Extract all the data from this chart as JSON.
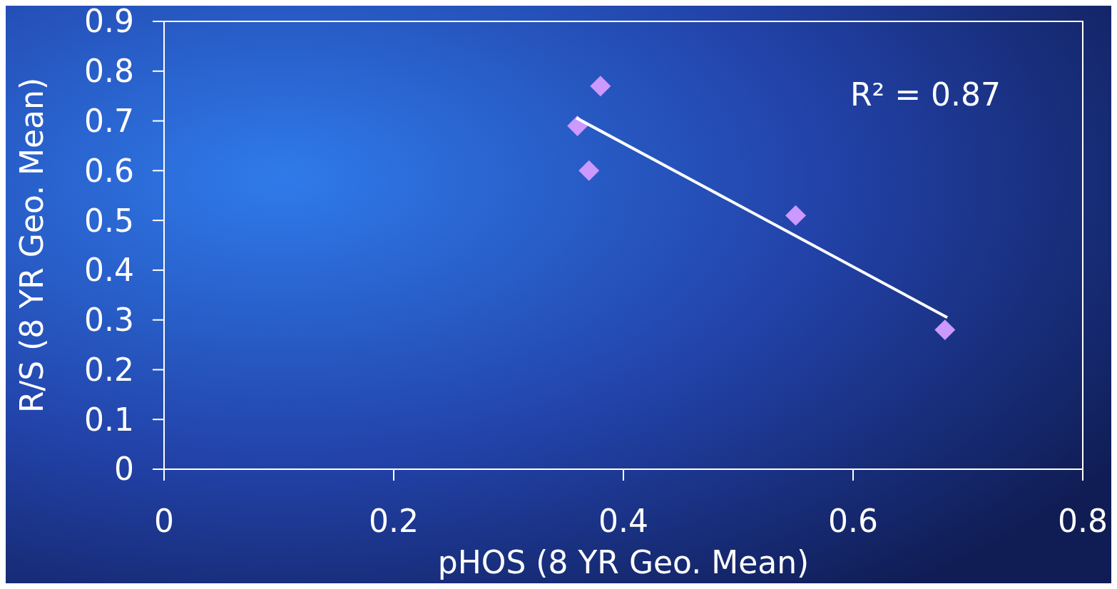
{
  "chart_data": {
    "type": "scatter",
    "xlabel": "pHOS (8 YR Geo. Mean)",
    "ylabel": "R/S (8 YR Geo. Mean)",
    "annotations": [
      "R² = 0.87"
    ],
    "xlim": [
      0,
      0.8
    ],
    "xticks": [
      0,
      0.2,
      0.4,
      0.6,
      0.8
    ],
    "ylim": [
      0,
      0.9
    ],
    "yticks": [
      0,
      0.1,
      0.2,
      0.3,
      0.4,
      0.5,
      0.6,
      0.7,
      0.8,
      0.9
    ],
    "grid": false,
    "series": [
      {
        "color": "#cc99ff",
        "marker": "diamond",
        "x": [
          0.38,
          0.36,
          0.37,
          0.55,
          0.68
        ],
        "values": [
          0.77,
          0.69,
          0.6,
          0.51,
          0.28
        ]
      },
      {
        "type": "line",
        "color": "#ffffff",
        "marker": "none",
        "line_style": "solid",
        "x": [
          0.359,
          0.682
        ],
        "values": [
          0.706,
          0.305
        ]
      }
    ]
  }
}
